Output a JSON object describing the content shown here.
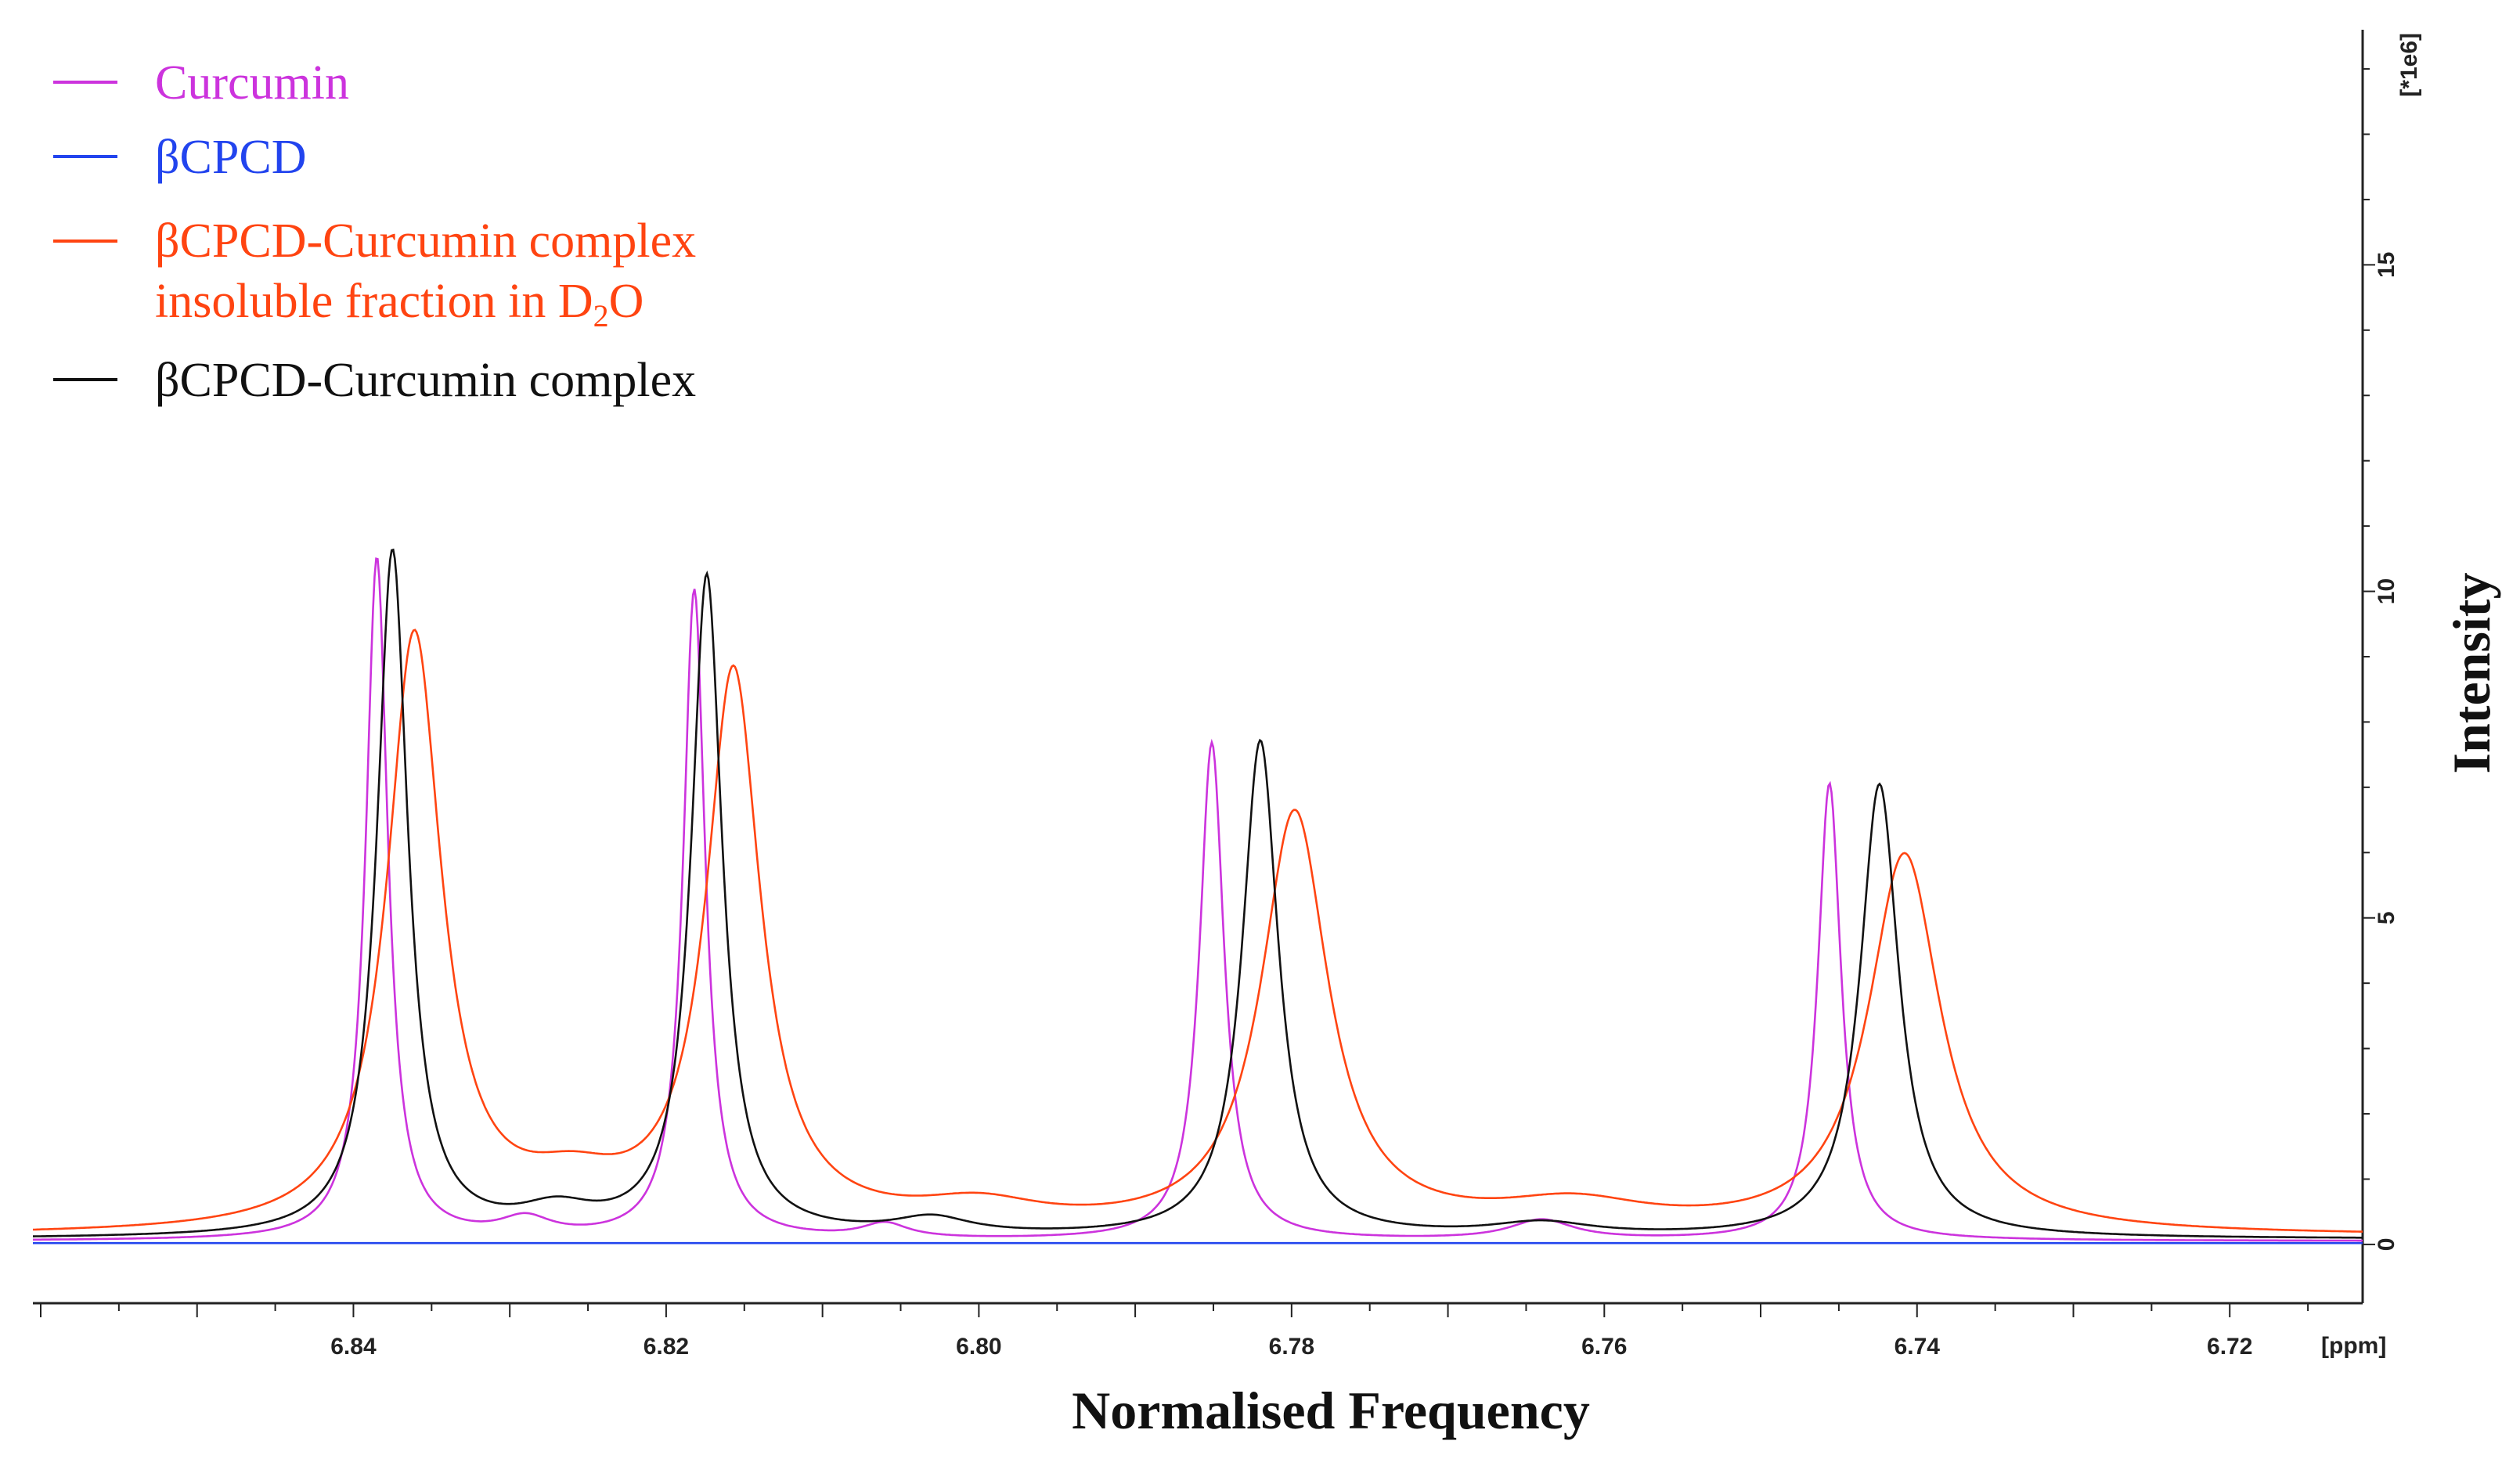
{
  "chart_data": {
    "type": "line",
    "title": "",
    "xlabel": "Normalised Frequency",
    "ylabel": "Intensity",
    "x_unit_label": "[ppm]",
    "y_unit_label": "[*1e6]",
    "xlim": [
      6.7115,
      6.8605
    ],
    "ylim": [
      -0.9,
      18.6
    ],
    "x_reversed": true,
    "x_ticks": [
      6.84,
      6.82,
      6.8,
      6.78,
      6.76,
      6.74,
      6.72
    ],
    "x_tick_labels": [
      "6.84",
      "6.82",
      "6.80",
      "6.78",
      "6.76",
      "6.74",
      "6.72"
    ],
    "y_ticks": [
      0,
      5,
      10,
      15
    ],
    "y_tick_labels": [
      "0",
      "5",
      "10",
      "15"
    ],
    "legend_position": "top-left",
    "series": [
      {
        "name": "Curcumin",
        "color": "#cc33dd",
        "baseline": 0.05,
        "peaks": [
          {
            "ppm": 6.8385,
            "height": 10.45,
            "width": 0.00085
          },
          {
            "ppm": 6.8182,
            "height": 9.95,
            "width": 0.00085
          },
          {
            "ppm": 6.7851,
            "height": 7.62,
            "width": 0.00095
          },
          {
            "ppm": 6.7456,
            "height": 7.0,
            "width": 0.0009
          },
          {
            "ppm": 6.829,
            "height": 0.28,
            "width": 0.002
          },
          {
            "ppm": 6.806,
            "height": 0.22,
            "width": 0.0018
          },
          {
            "ppm": 6.764,
            "height": 0.3,
            "width": 0.0025
          }
        ]
      },
      {
        "name": "βCPCD",
        "color": "#2244ee",
        "baseline": 0.02,
        "peaks": []
      },
      {
        "name": "βCPCD-Curcumin complex",
        "name_line2_prefix": "insoluble fraction in D",
        "name_line2_sub": "2",
        "name_line2_suffix": "O",
        "color": "#ff4411",
        "baseline": 0.12,
        "peaks": [
          {
            "ppm": 6.8361,
            "height": 9.1,
            "width": 0.0021
          },
          {
            "ppm": 6.8157,
            "height": 8.5,
            "width": 0.0021
          },
          {
            "ppm": 6.7798,
            "height": 6.4,
            "width": 0.0026
          },
          {
            "ppm": 6.7408,
            "height": 5.8,
            "width": 0.0028
          },
          {
            "ppm": 6.826,
            "height": 0.55,
            "width": 0.004
          },
          {
            "ppm": 6.8,
            "height": 0.35,
            "width": 0.005
          },
          {
            "ppm": 6.762,
            "height": 0.4,
            "width": 0.006
          }
        ]
      },
      {
        "name": "βCPCD-Curcumin complex",
        "color": "#111111",
        "baseline": 0.08,
        "peaks": [
          {
            "ppm": 6.8375,
            "height": 10.5,
            "width": 0.0012
          },
          {
            "ppm": 6.8174,
            "height": 10.1,
            "width": 0.0012
          },
          {
            "ppm": 6.782,
            "height": 7.6,
            "width": 0.0014
          },
          {
            "ppm": 6.7424,
            "height": 6.95,
            "width": 0.0015
          },
          {
            "ppm": 6.827,
            "height": 0.35,
            "width": 0.003
          },
          {
            "ppm": 6.803,
            "height": 0.25,
            "width": 0.003
          },
          {
            "ppm": 6.764,
            "height": 0.2,
            "width": 0.004
          }
        ]
      }
    ]
  }
}
